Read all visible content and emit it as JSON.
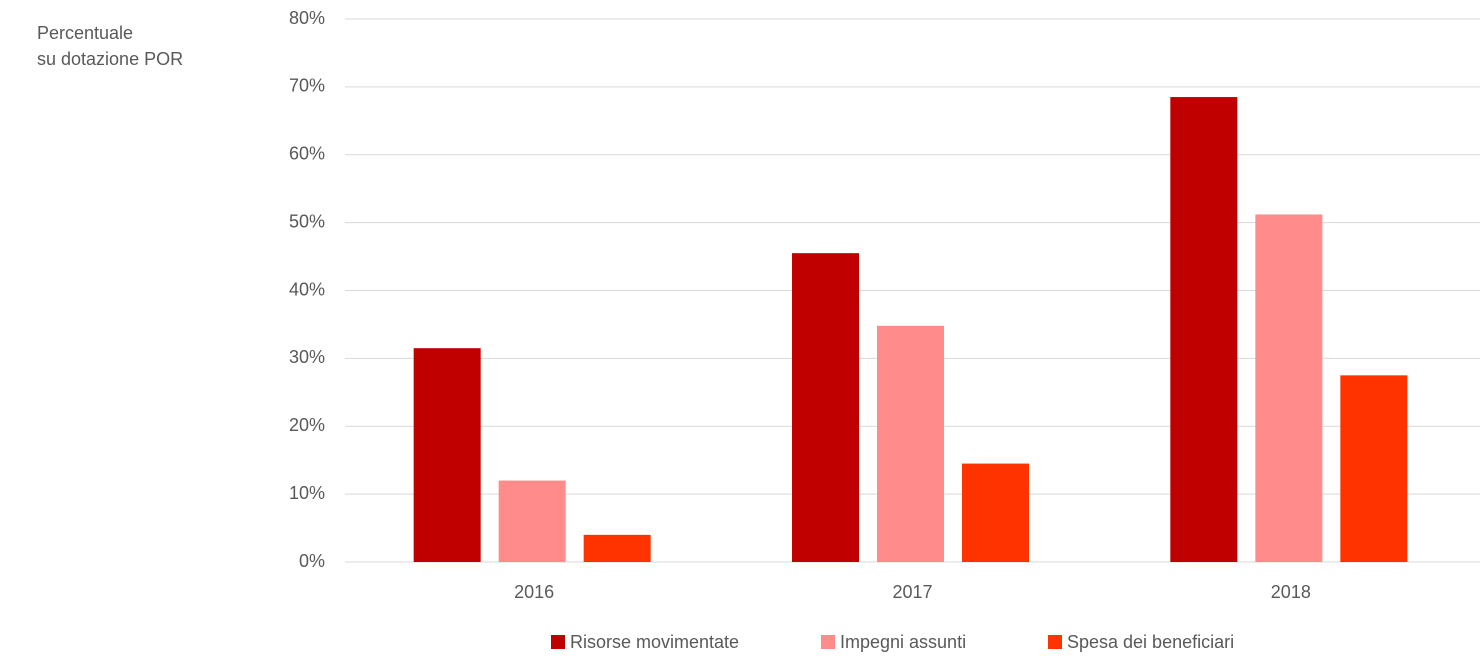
{
  "chart_data": {
    "type": "bar",
    "y_label_lines": [
      "Percentuale",
      "su dotazione POR"
    ],
    "categories": [
      "2016",
      "2017",
      "2018"
    ],
    "series": [
      {
        "name": "Risorse movimentate",
        "color": "#c00000",
        "values": [
          31.5,
          45.5,
          68.5
        ]
      },
      {
        "name": "Impegni assunti",
        "color": "#ff8b8b",
        "values": [
          12,
          34.8,
          51.2
        ]
      },
      {
        "name": "Spesa dei beneficiari",
        "color": "#ff3300",
        "values": [
          4,
          14.5,
          27.5
        ]
      }
    ],
    "ylim": [
      0,
      80
    ],
    "yticks": [
      {
        "value": 0,
        "label": "0%"
      },
      {
        "value": 10,
        "label": "10%"
      },
      {
        "value": 20,
        "label": "20%"
      },
      {
        "value": 30,
        "label": "30%"
      },
      {
        "value": 40,
        "label": "40%"
      },
      {
        "value": 50,
        "label": "50%"
      },
      {
        "value": 60,
        "label": "60%"
      },
      {
        "value": 70,
        "label": "70%"
      },
      {
        "value": 80,
        "label": "80%"
      }
    ],
    "grid": true,
    "legend": "bottom"
  }
}
